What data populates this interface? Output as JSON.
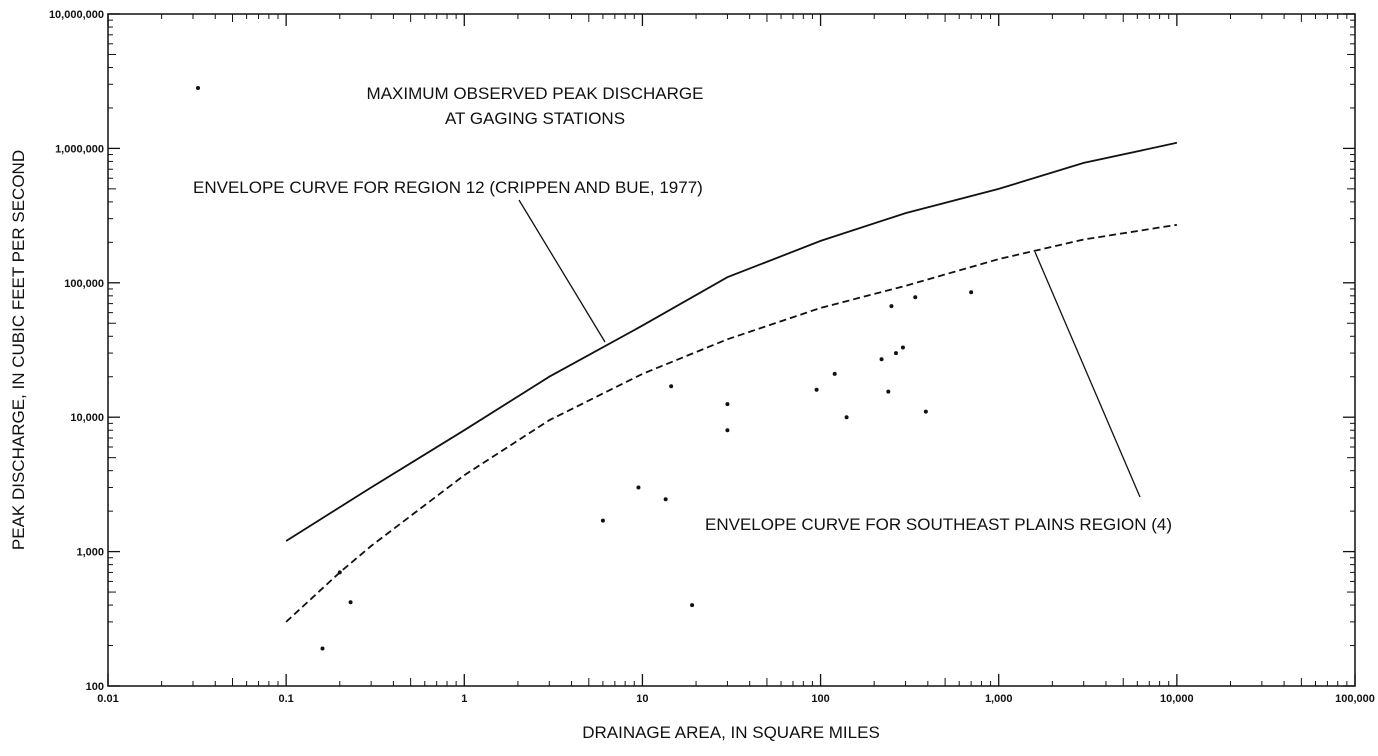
{
  "chart_data": {
    "type": "scatter",
    "x_label": "DRAINAGE AREA, IN SQUARE MILES",
    "y_label": "PEAK DISCHARGE, IN CUBIC FEET PER SECOND",
    "xscale": "log",
    "yscale": "log",
    "color": "#111111",
    "xlim": [
      0.01,
      100000
    ],
    "ylim": [
      100,
      10000000
    ],
    "xticks": [
      0.01,
      0.1,
      1,
      10,
      100,
      {
        "value": 1000,
        "label": "1,000"
      },
      {
        "value": 10000,
        "label": "10,000"
      },
      {
        "value": 100000,
        "label": "100,000"
      }
    ],
    "yticks": [
      100,
      {
        "value": 1000,
        "label": "1,000"
      },
      {
        "value": 10000,
        "label": "10,000"
      },
      {
        "value": 100000,
        "label": "100,000"
      },
      {
        "value": 1000000,
        "label": "1,000,000"
      },
      {
        "value": 10000000,
        "label": "10,000,000"
      }
    ],
    "series": [
      {
        "name": [
          "MAXIMUM OBSERVED PEAK DISCHARGE",
          "AT GAGING STATIONS"
        ],
        "type": "scatter",
        "x": [
          0.16,
          0.2,
          0.23,
          6,
          9.5,
          13.5,
          14.5,
          19,
          30,
          30,
          95,
          120,
          140,
          220,
          240,
          250,
          265,
          290,
          340,
          390,
          700
        ],
        "values": [
          190,
          700,
          420,
          1700,
          3000,
          2450,
          17000,
          400,
          12500,
          8000,
          16000,
          21000,
          10000,
          27000,
          15500,
          67000,
          30000,
          33000,
          78000,
          11000,
          85000
        ]
      },
      {
        "name": "ENVELOPE CURVE FOR REGION 12 (CRIPPEN AND BUE, 1977)",
        "type": "line",
        "dashed": false,
        "x": [
          0.1,
          0.3,
          1,
          3,
          10,
          30,
          100,
          300,
          1000,
          3000,
          10000
        ],
        "values": [
          1200,
          3000,
          8000,
          20000,
          48000,
          110000,
          205000,
          330000,
          500000,
          780000,
          1100000
        ]
      },
      {
        "name": "ENVELOPE CURVE FOR SOUTHEAST PLAINS REGION (4)",
        "type": "line",
        "dashed": true,
        "x": [
          0.1,
          0.2,
          0.3,
          1,
          3,
          10,
          30,
          100,
          300,
          1000,
          3000,
          10000
        ],
        "values": [
          300,
          700,
          1100,
          3700,
          9500,
          21000,
          38000,
          65000,
          95000,
          150000,
          210000,
          270000
        ]
      }
    ]
  }
}
